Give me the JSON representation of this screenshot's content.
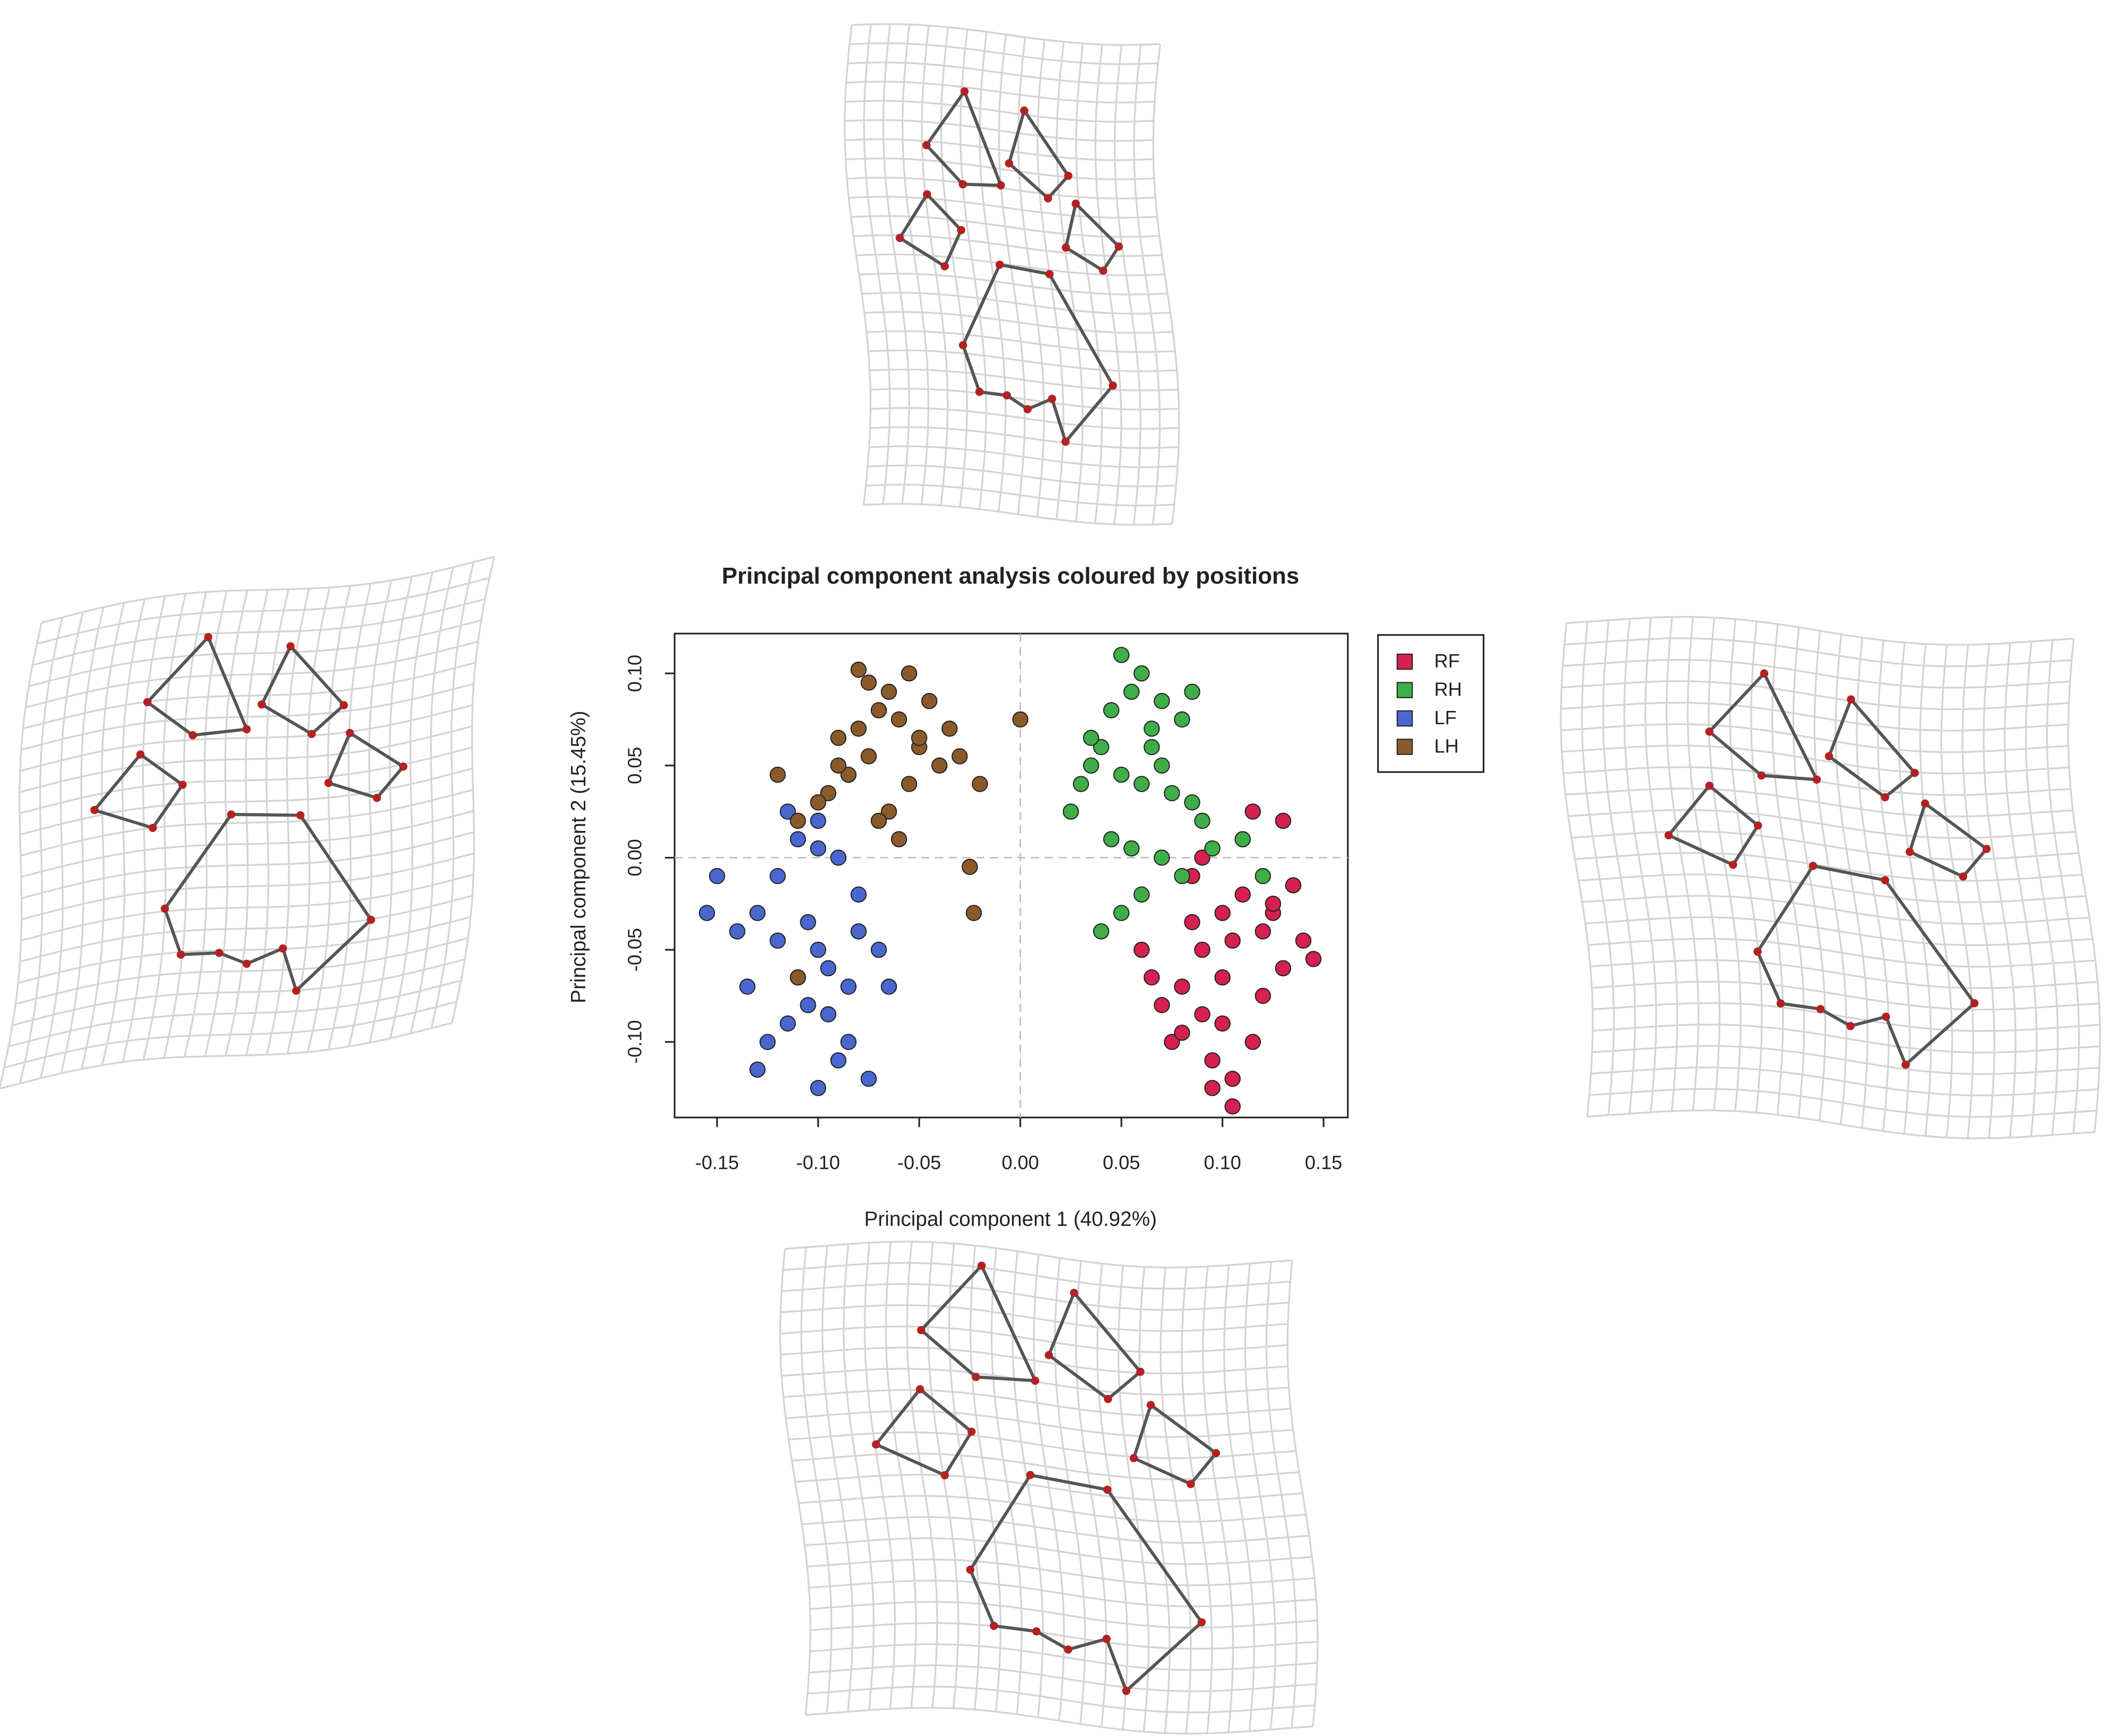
{
  "chart_data": {
    "type": "scatter",
    "title": "Principal component analysis coloured by positions",
    "x_label": "Principal component 1 (40.92%)",
    "y_label": "Principal component 2 (15.45%)",
    "xlim": [
      -0.171,
      0.162
    ],
    "ylim": [
      -0.141,
      0.1216
    ],
    "xticks": [
      -0.15,
      {
        "value": -0.1,
        "label": "-0.10"
      },
      -0.05,
      {
        "value": 0,
        "label": "0.00"
      },
      0.05,
      {
        "value": 0.1,
        "label": "0.10"
      },
      0.15
    ],
    "yticks": [
      {
        "value": -0.1,
        "label": "-0.10"
      },
      -0.05,
      {
        "value": 0,
        "label": "0.00"
      },
      0.05,
      {
        "value": 0.1,
        "label": "0.10"
      }
    ],
    "zero_lines": true,
    "legend": "outside-top-right",
    "series": [
      {
        "name": "RF",
        "color": "#d6204f",
        "x": [
          0.1,
          0.11,
          0.12,
          0.09,
          0.13,
          0.14,
          0.08,
          0.07,
          0.1,
          0.115,
          0.095,
          0.105,
          0.125,
          0.085,
          0.06,
          0.075,
          0.09,
          0.11,
          0.13,
          0.145,
          0.1,
          0.12,
          0.08,
          0.095,
          0.105,
          0.065,
          0.085,
          0.115,
          0.135,
          0.09,
          0.105,
          0.125
        ],
        "values": [
          -0.03,
          -0.02,
          -0.04,
          -0.05,
          -0.06,
          -0.045,
          -0.07,
          -0.08,
          -0.09,
          -0.1,
          -0.11,
          -0.12,
          -0.03,
          -0.01,
          -0.05,
          -0.1,
          0.0,
          0.01,
          0.02,
          -0.055,
          -0.065,
          -0.075,
          -0.095,
          -0.125,
          -0.135,
          -0.065,
          -0.035,
          0.025,
          -0.015,
          -0.085,
          -0.045,
          -0.025
        ]
      },
      {
        "name": "RH",
        "color": "#3fae49",
        "x": [
          0.05,
          0.06,
          0.055,
          0.07,
          0.045,
          0.065,
          0.08,
          0.04,
          0.035,
          0.05,
          0.06,
          0.075,
          0.085,
          0.09,
          0.03,
          0.025,
          0.045,
          0.055,
          0.07,
          0.08,
          0.095,
          0.06,
          0.05,
          0.04,
          0.065,
          0.11,
          0.12,
          0.035,
          0.07,
          0.085
        ],
        "values": [
          0.11,
          0.1,
          0.09,
          0.085,
          0.08,
          0.07,
          0.075,
          0.06,
          0.05,
          0.045,
          0.04,
          0.035,
          0.03,
          0.02,
          0.04,
          0.025,
          0.01,
          0.005,
          0.0,
          -0.01,
          0.005,
          -0.02,
          -0.03,
          -0.04,
          0.06,
          0.01,
          -0.01,
          0.065,
          0.05,
          0.09
        ]
      },
      {
        "name": "LF",
        "color": "#4a67d0",
        "x": [
          -0.1,
          -0.11,
          -0.09,
          -0.12,
          -0.08,
          -0.13,
          -0.14,
          -0.155,
          -0.15,
          -0.1,
          -0.095,
          -0.085,
          -0.105,
          -0.115,
          -0.125,
          -0.09,
          -0.075,
          -0.08,
          -0.1,
          -0.11,
          -0.12,
          -0.135,
          -0.095,
          -0.085,
          -0.105,
          -0.07,
          -0.065,
          -0.1,
          -0.13,
          -0.115
        ],
        "values": [
          0.02,
          0.01,
          0.0,
          -0.01,
          -0.02,
          -0.03,
          -0.04,
          -0.03,
          -0.01,
          -0.05,
          -0.06,
          -0.07,
          -0.08,
          -0.09,
          -0.1,
          -0.11,
          -0.12,
          -0.04,
          -0.125,
          -0.065,
          -0.045,
          -0.07,
          -0.085,
          -0.1,
          -0.035,
          -0.05,
          -0.07,
          0.005,
          -0.115,
          0.025
        ]
      },
      {
        "name": "LH",
        "color": "#8b5a2b",
        "x": [
          -0.065,
          -0.07,
          -0.06,
          -0.08,
          -0.09,
          -0.05,
          -0.04,
          -0.075,
          -0.085,
          -0.055,
          -0.095,
          -0.1,
          -0.065,
          -0.07,
          -0.06,
          -0.045,
          -0.035,
          -0.02,
          -0.03,
          -0.075,
          -0.08,
          -0.055,
          -0.09,
          -0.12,
          -0.11,
          0.0,
          -0.025,
          -0.023,
          -0.11,
          -0.05
        ],
        "values": [
          0.09,
          0.08,
          0.075,
          0.07,
          0.065,
          0.06,
          0.05,
          0.055,
          0.045,
          0.04,
          0.035,
          0.03,
          0.025,
          0.02,
          0.01,
          0.085,
          0.07,
          0.04,
          0.055,
          0.095,
          0.102,
          0.1,
          0.05,
          0.045,
          0.02,
          0.075,
          -0.005,
          -0.03,
          -0.065,
          0.065
        ]
      }
    ]
  }
}
